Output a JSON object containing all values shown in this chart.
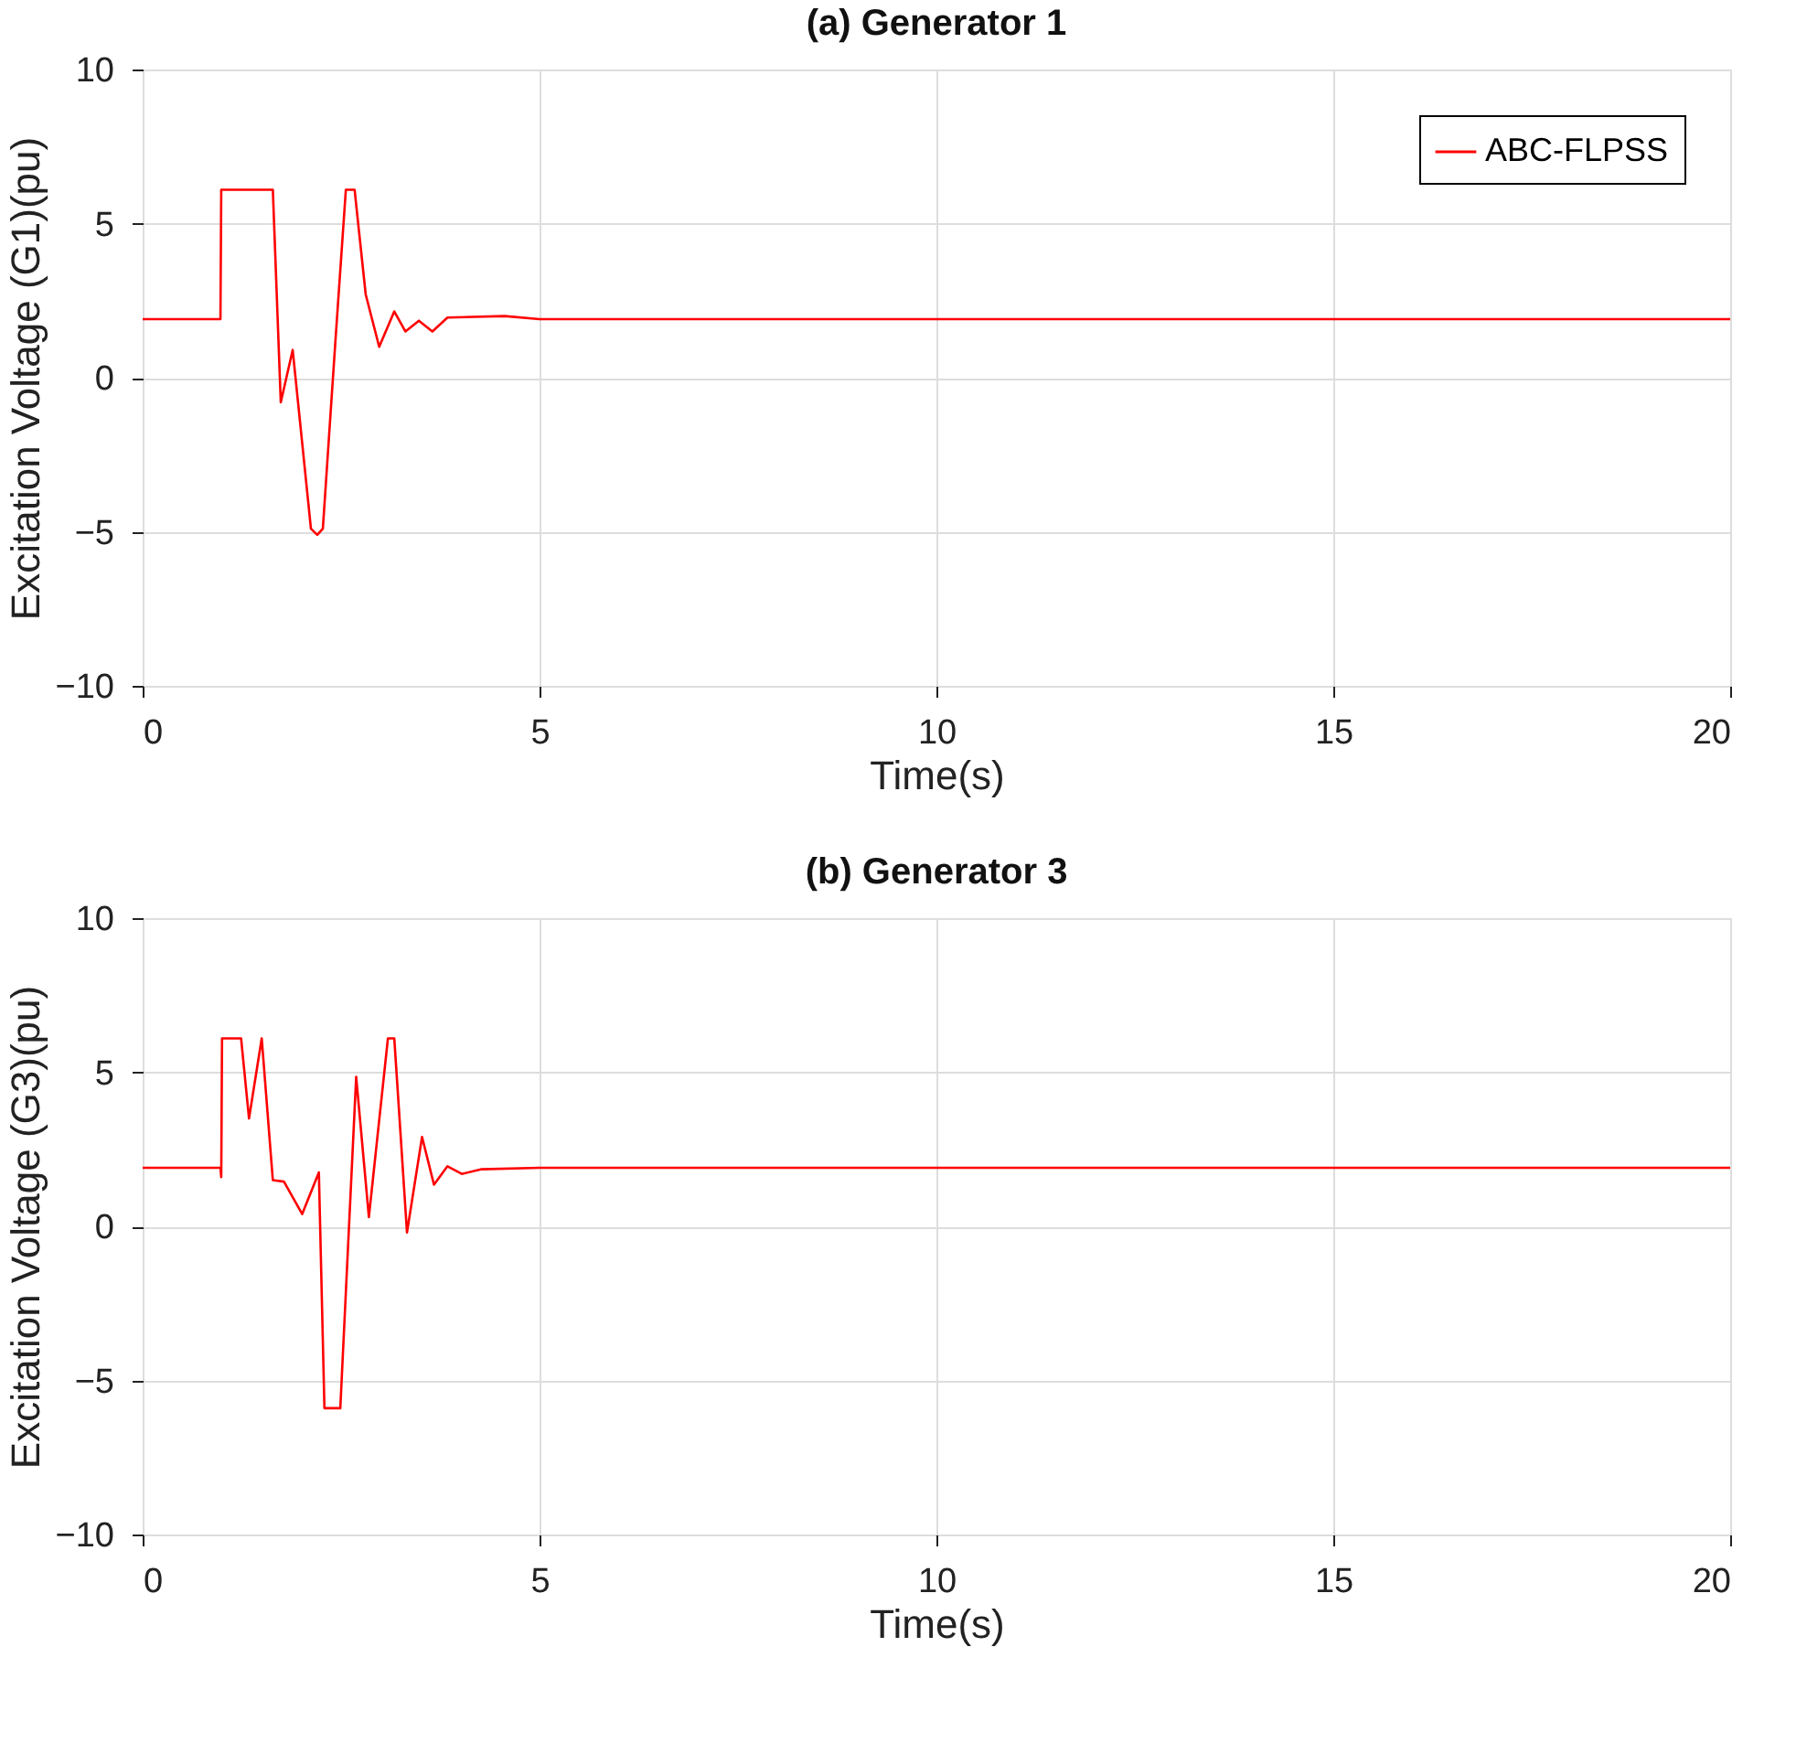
{
  "chart_data": [
    {
      "type": "line",
      "title": "(a) Generator 1",
      "xlabel": "Time(s)",
      "ylabel": "Excitation Voltage (G1)(pu)",
      "xlim": [
        0,
        20
      ],
      "xticks": [
        0,
        5,
        10,
        15,
        20
      ],
      "ylim": [
        -10,
        10
      ],
      "yticks": [
        -10,
        -5,
        0,
        5,
        10
      ],
      "grid": true,
      "legend": "top right",
      "line_style": "solid",
      "series": [
        {
          "name": "ABC-FLPSS",
          "color": "#ff0000",
          "x": [
            0,
            0.98,
            0.99,
            1.64,
            1.74,
            1.89,
            2.12,
            2.2,
            2.27,
            2.43,
            2.56,
            2.67,
            2.81,
            2.98,
            3.17,
            3.31,
            3.48,
            3.65,
            3.84,
            4.56,
            5,
            20
          ],
          "values": [
            1.9,
            1.9,
            6.1,
            6.1,
            -0.8,
            0.9,
            -4.9,
            -5.1,
            -4.9,
            1.25,
            6.1,
            6.1,
            2.7,
            1.0,
            2.15,
            1.5,
            1.85,
            1.5,
            1.95,
            2.0,
            1.9,
            1.9
          ]
        }
      ]
    },
    {
      "type": "line",
      "title": "(b) Generator 3",
      "xlabel": "Time(s)",
      "ylabel": "Excitation Voltage (G3)(pu)",
      "xlim": [
        0,
        20
      ],
      "xticks": [
        0,
        5,
        10,
        15,
        20
      ],
      "ylim": [
        -10,
        10
      ],
      "yticks": [
        -10,
        -5,
        0,
        5,
        10
      ],
      "grid": true,
      "legend": "top right",
      "line_style": "solid",
      "series": [
        {
          "name": "ABC-FLPSS",
          "color": "#ff0000",
          "x": [
            0,
            0.98,
            0.99,
            1.0,
            1.24,
            1.34,
            1.5,
            1.64,
            1.78,
            2.01,
            2.22,
            2.29,
            2.49,
            2.69,
            2.85,
            3.09,
            3.17,
            3.33,
            3.52,
            3.67,
            3.84,
            4.02,
            4.26,
            5,
            20
          ],
          "values": [
            1.9,
            1.9,
            1.6,
            6.1,
            6.1,
            3.5,
            6.1,
            1.5,
            1.45,
            0.4,
            1.75,
            -5.9,
            -5.9,
            4.85,
            0.3,
            6.1,
            6.1,
            -0.2,
            2.9,
            1.35,
            1.95,
            1.7,
            1.85,
            1.9,
            1.9
          ]
        }
      ]
    }
  ]
}
